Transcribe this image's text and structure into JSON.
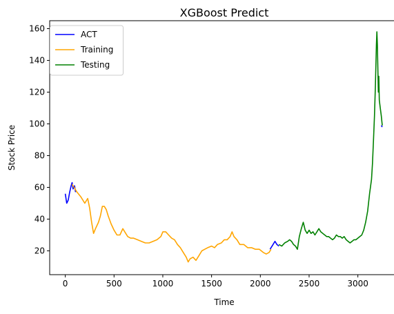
{
  "chart_data": {
    "type": "line",
    "title": "XGBoost Predict",
    "xlabel": "Time",
    "ylabel": "Stock Price",
    "xlim": [
      -160,
      3420
    ],
    "ylim": [
      5,
      165
    ],
    "x_ticks": [
      0,
      500,
      1000,
      1500,
      2000,
      2500,
      3000
    ],
    "y_ticks": [
      20,
      40,
      60,
      80,
      100,
      120,
      140,
      160
    ],
    "grid": false,
    "legend_position": "top-left",
    "series": [
      {
        "name": "ACT",
        "color": "#0000ff",
        "points": [
          [
            0,
            56
          ],
          [
            15,
            50
          ],
          [
            30,
            52
          ],
          [
            45,
            57
          ],
          [
            60,
            61
          ],
          [
            70,
            63
          ],
          [
            80,
            59
          ],
          [
            95,
            61
          ],
          [
            105,
            57
          ],
          [
            2100,
            21
          ],
          [
            2130,
            24
          ],
          [
            2150,
            26
          ],
          [
            2170,
            24
          ],
          [
            2190,
            23
          ],
          [
            3240,
            99
          ],
          [
            3250,
            98
          ]
        ]
      },
      {
        "name": "Training",
        "color": "#ffa500",
        "points": [
          [
            70,
            62
          ],
          [
            90,
            60
          ],
          [
            120,
            57
          ],
          [
            160,
            54
          ],
          [
            200,
            50
          ],
          [
            230,
            53
          ],
          [
            250,
            47
          ],
          [
            270,
            38
          ],
          [
            290,
            31
          ],
          [
            310,
            34
          ],
          [
            340,
            38
          ],
          [
            360,
            42
          ],
          [
            380,
            48
          ],
          [
            400,
            48
          ],
          [
            420,
            46
          ],
          [
            440,
            42
          ],
          [
            470,
            37
          ],
          [
            500,
            33
          ],
          [
            530,
            30
          ],
          [
            560,
            30
          ],
          [
            590,
            34
          ],
          [
            610,
            32
          ],
          [
            640,
            29
          ],
          [
            670,
            28
          ],
          [
            700,
            28
          ],
          [
            740,
            27
          ],
          [
            780,
            26
          ],
          [
            820,
            25
          ],
          [
            860,
            25
          ],
          [
            900,
            26
          ],
          [
            940,
            27
          ],
          [
            980,
            29
          ],
          [
            1000,
            32
          ],
          [
            1030,
            32
          ],
          [
            1060,
            30
          ],
          [
            1090,
            28
          ],
          [
            1120,
            27
          ],
          [
            1150,
            24
          ],
          [
            1180,
            22
          ],
          [
            1210,
            19
          ],
          [
            1240,
            16
          ],
          [
            1260,
            13
          ],
          [
            1280,
            15
          ],
          [
            1310,
            16
          ],
          [
            1340,
            14
          ],
          [
            1370,
            17
          ],
          [
            1400,
            20
          ],
          [
            1430,
            21
          ],
          [
            1460,
            22
          ],
          [
            1500,
            23
          ],
          [
            1530,
            22
          ],
          [
            1560,
            24
          ],
          [
            1600,
            25
          ],
          [
            1630,
            27
          ],
          [
            1660,
            27
          ],
          [
            1690,
            29
          ],
          [
            1710,
            32
          ],
          [
            1730,
            29
          ],
          [
            1760,
            27
          ],
          [
            1790,
            24
          ],
          [
            1830,
            24
          ],
          [
            1870,
            22
          ],
          [
            1910,
            22
          ],
          [
            1950,
            21
          ],
          [
            1990,
            21
          ],
          [
            2030,
            19
          ],
          [
            2060,
            18
          ],
          [
            2090,
            19
          ],
          [
            2110,
            21
          ]
        ]
      },
      {
        "name": "Testing",
        "color": "#008000",
        "points": [
          [
            2190,
            24
          ],
          [
            2220,
            23
          ],
          [
            2250,
            25
          ],
          [
            2280,
            26
          ],
          [
            2300,
            27
          ],
          [
            2320,
            26
          ],
          [
            2340,
            24
          ],
          [
            2360,
            23
          ],
          [
            2380,
            21
          ],
          [
            2400,
            29
          ],
          [
            2420,
            34
          ],
          [
            2440,
            38
          ],
          [
            2460,
            33
          ],
          [
            2480,
            31
          ],
          [
            2500,
            33
          ],
          [
            2520,
            31
          ],
          [
            2540,
            32
          ],
          [
            2560,
            30
          ],
          [
            2580,
            32
          ],
          [
            2600,
            34
          ],
          [
            2620,
            32
          ],
          [
            2640,
            31
          ],
          [
            2660,
            30
          ],
          [
            2680,
            29
          ],
          [
            2700,
            29
          ],
          [
            2720,
            28
          ],
          [
            2740,
            27
          ],
          [
            2760,
            28
          ],
          [
            2780,
            30
          ],
          [
            2800,
            29
          ],
          [
            2820,
            29
          ],
          [
            2840,
            28
          ],
          [
            2860,
            29
          ],
          [
            2880,
            27
          ],
          [
            2900,
            26
          ],
          [
            2920,
            25
          ],
          [
            2940,
            26
          ],
          [
            2960,
            27
          ],
          [
            2980,
            27
          ],
          [
            3000,
            28
          ],
          [
            3020,
            29
          ],
          [
            3040,
            30
          ],
          [
            3060,
            33
          ],
          [
            3080,
            38
          ],
          [
            3100,
            45
          ],
          [
            3120,
            56
          ],
          [
            3140,
            65
          ],
          [
            3150,
            75
          ],
          [
            3160,
            90
          ],
          [
            3170,
            105
          ],
          [
            3180,
            125
          ],
          [
            3190,
            150
          ],
          [
            3195,
            158
          ],
          [
            3200,
            150
          ],
          [
            3210,
            120
          ],
          [
            3215,
            130
          ],
          [
            3220,
            115
          ],
          [
            3230,
            110
          ],
          [
            3240,
            105
          ],
          [
            3250,
            99
          ]
        ]
      }
    ]
  }
}
